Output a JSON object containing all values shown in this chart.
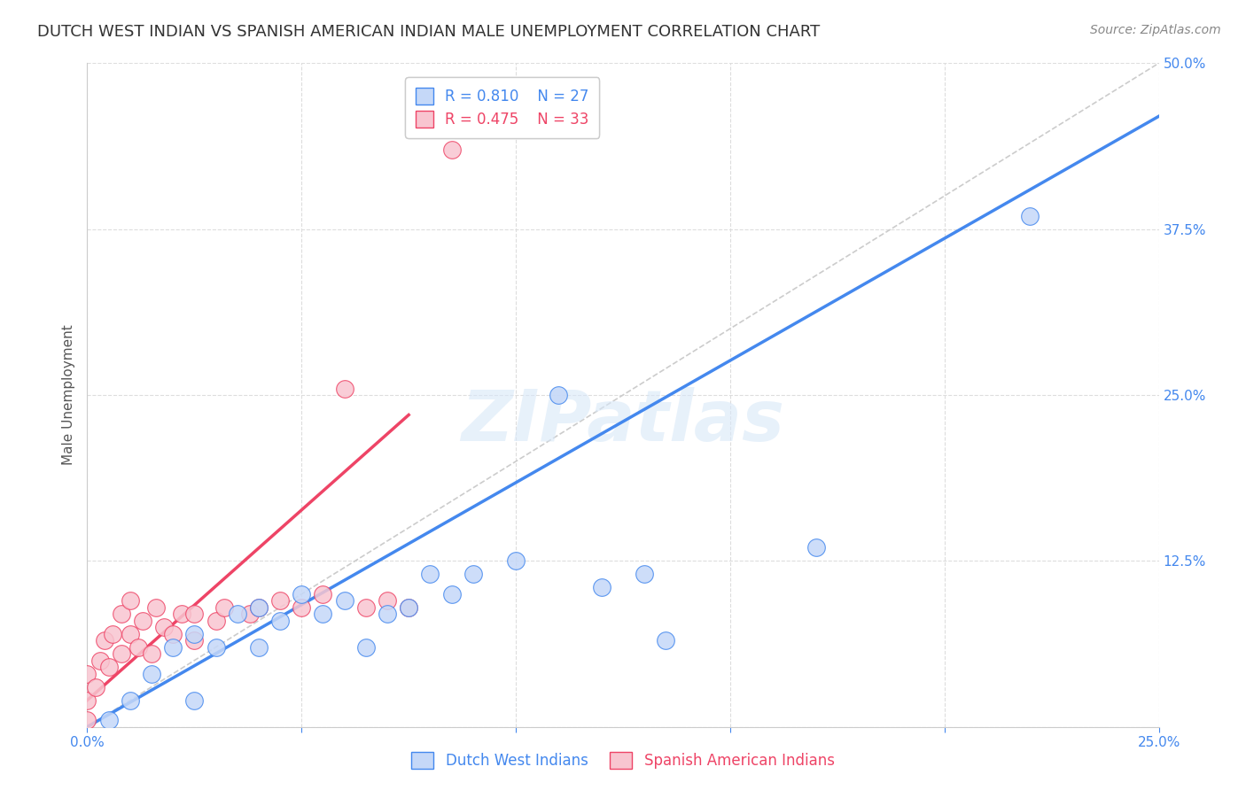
{
  "title": "DUTCH WEST INDIAN VS SPANISH AMERICAN INDIAN MALE UNEMPLOYMENT CORRELATION CHART",
  "source": "Source: ZipAtlas.com",
  "ylabel_label": "Male Unemployment",
  "xlim": [
    0.0,
    0.25
  ],
  "ylim": [
    0.0,
    0.5
  ],
  "legend_blue_R": "R = 0.810",
  "legend_blue_N": "N = 27",
  "legend_pink_R": "R = 0.475",
  "legend_pink_N": "N = 33",
  "legend_blue_label": "Dutch West Indians",
  "legend_pink_label": "Spanish American Indians",
  "blue_color": "#c5d8f8",
  "blue_line_color": "#4488ee",
  "pink_color": "#f8c5d0",
  "pink_line_color": "#ee4466",
  "diag_color": "#cccccc",
  "watermark": "ZIPatlas",
  "blue_scatter_x": [
    0.005,
    0.01,
    0.015,
    0.02,
    0.025,
    0.025,
    0.03,
    0.035,
    0.04,
    0.04,
    0.045,
    0.05,
    0.055,
    0.06,
    0.065,
    0.07,
    0.075,
    0.08,
    0.085,
    0.09,
    0.1,
    0.11,
    0.12,
    0.13,
    0.135,
    0.17,
    0.22
  ],
  "blue_scatter_y": [
    0.005,
    0.02,
    0.04,
    0.06,
    0.02,
    0.07,
    0.06,
    0.085,
    0.06,
    0.09,
    0.08,
    0.1,
    0.085,
    0.095,
    0.06,
    0.085,
    0.09,
    0.115,
    0.1,
    0.115,
    0.125,
    0.25,
    0.105,
    0.115,
    0.065,
    0.135,
    0.385
  ],
  "pink_scatter_x": [
    0.0,
    0.0,
    0.0,
    0.002,
    0.003,
    0.004,
    0.005,
    0.006,
    0.008,
    0.008,
    0.01,
    0.01,
    0.012,
    0.013,
    0.015,
    0.016,
    0.018,
    0.02,
    0.022,
    0.025,
    0.025,
    0.03,
    0.032,
    0.038,
    0.04,
    0.045,
    0.05,
    0.055,
    0.06,
    0.065,
    0.07,
    0.075,
    0.085
  ],
  "pink_scatter_y": [
    0.005,
    0.02,
    0.04,
    0.03,
    0.05,
    0.065,
    0.045,
    0.07,
    0.055,
    0.085,
    0.07,
    0.095,
    0.06,
    0.08,
    0.055,
    0.09,
    0.075,
    0.07,
    0.085,
    0.065,
    0.085,
    0.08,
    0.09,
    0.085,
    0.09,
    0.095,
    0.09,
    0.1,
    0.255,
    0.09,
    0.095,
    0.09,
    0.435
  ],
  "blue_line_x": [
    0.0,
    0.25
  ],
  "blue_line_y": [
    0.0,
    0.46
  ],
  "pink_line_x": [
    0.0,
    0.075
  ],
  "pink_line_y": [
    0.02,
    0.235
  ],
  "diag_line_x": [
    0.0,
    0.25
  ],
  "diag_line_y": [
    0.0,
    0.5
  ],
  "title_fontsize": 13,
  "axis_label_fontsize": 11,
  "tick_fontsize": 11,
  "source_fontsize": 10
}
